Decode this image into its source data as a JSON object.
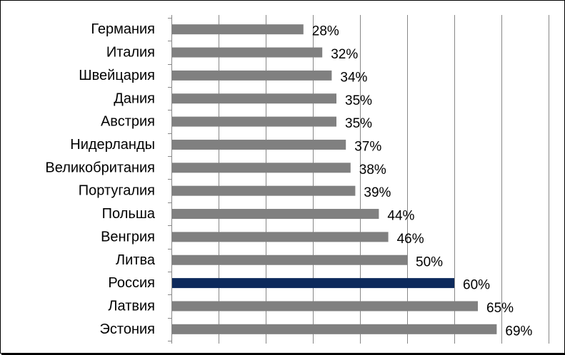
{
  "chart_data": {
    "type": "bar",
    "orientation": "horizontal",
    "categories": [
      "Германия",
      "Италия",
      "Швейцария",
      "Дания",
      "Австрия",
      "Нидерланды",
      "Великобритания",
      "Португалия",
      "Польша",
      "Венгрия",
      "Литва",
      "Россия",
      "Латвия",
      "Эстония"
    ],
    "values": [
      28,
      32,
      34,
      35,
      35,
      37,
      38,
      39,
      44,
      46,
      50,
      60,
      65,
      69
    ],
    "data_labels": [
      "28%",
      "32%",
      "34%",
      "35%",
      "35%",
      "37%",
      "38%",
      "39%",
      "44%",
      "46%",
      "50%",
      "60%",
      "65%",
      "69%"
    ],
    "unit": "%",
    "xlim": [
      0,
      80
    ],
    "grid": true,
    "legend": "none",
    "colors": {
      "default_bar": "#808080",
      "highlight_bar": "#0d2a5c",
      "highlight_category": "Россия",
      "grid": "#878787"
    }
  }
}
